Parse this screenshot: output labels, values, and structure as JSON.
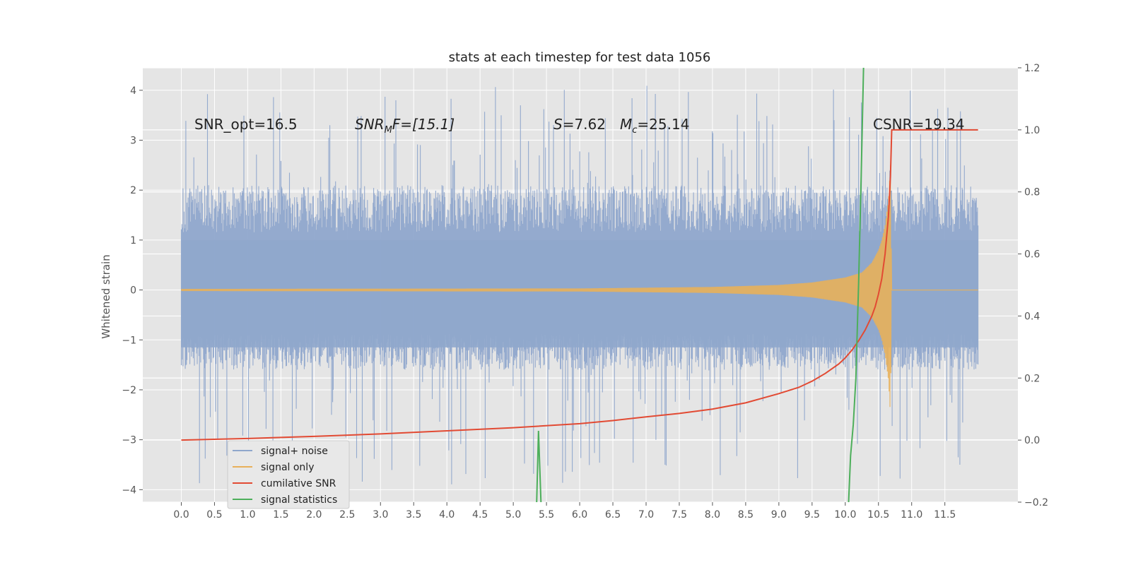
{
  "chart_data": {
    "type": "line",
    "title": "stats at each timestep for test data 1056",
    "ylabel": "Whitened strain",
    "xlim": [
      -0.58,
      12.6
    ],
    "ylim_left": [
      -4.25,
      4.45
    ],
    "ylim_right": [
      -0.2,
      1.2
    ],
    "x_ticks": [
      0.0,
      0.5,
      1.0,
      1.5,
      2.0,
      2.5,
      3.0,
      3.5,
      4.0,
      4.5,
      5.0,
      5.5,
      6.0,
      6.5,
      7.0,
      7.5,
      8.0,
      8.5,
      9.0,
      9.5,
      10.0,
      10.5,
      11.0,
      11.5
    ],
    "x_tick_labels": [
      "0.0",
      "0.5",
      "1.0",
      "1.5",
      "2.0",
      "2.5",
      "3.0",
      "3.5",
      "4.0",
      "4.5",
      "5.0",
      "5.5",
      "6.0",
      "6.5",
      "7.0",
      "7.5",
      "8.0",
      "8.5",
      "9.0",
      "9.5",
      "10.0",
      "10.5",
      "11.0",
      "11.5"
    ],
    "y_left_ticks": [
      -4,
      -3,
      -2,
      -1,
      0,
      1,
      2,
      3,
      4
    ],
    "y_left_tick_labels": [
      "−4",
      "−3",
      "−2",
      "−1",
      "0",
      "1",
      "2",
      "3",
      "4"
    ],
    "y_right_ticks": [
      -0.2,
      0.0,
      0.2,
      0.4,
      0.6,
      0.8,
      1.0,
      1.2
    ],
    "y_right_tick_labels": [
      "−0.2",
      "0.0",
      "0.2",
      "0.4",
      "0.6",
      "0.8",
      "1.0",
      "1.2"
    ],
    "grid": true,
    "legend_position": "lower-left",
    "noise_x_range": [
      0.0,
      12.0
    ],
    "noise_band": [
      -1.6,
      2.1
    ],
    "noise_peak_range": [
      -3.9,
      4.1
    ],
    "series": [
      {
        "name": "signal+ noise",
        "axis": "left",
        "color": "#8fa7cc",
        "description": "whitened noisy strain",
        "x_range": [
          0.0,
          12.0
        ],
        "approx_min": -3.9,
        "approx_max": 4.1
      },
      {
        "name": "signal only",
        "axis": "left",
        "color": "#e8b05a",
        "x": [
          0.0,
          6.0,
          8.0,
          9.0,
          9.5,
          10.0,
          10.25,
          10.4,
          10.5,
          10.55,
          10.6,
          10.65,
          10.68,
          10.7,
          12.0
        ],
        "envelope": [
          0.02,
          0.03,
          0.06,
          0.1,
          0.15,
          0.25,
          0.35,
          0.55,
          0.8,
          1.0,
          1.3,
          1.8,
          2.5,
          0.0,
          0.0
        ]
      },
      {
        "name": "cumilative SNR",
        "axis": "right",
        "color": "#e24a33",
        "x": [
          0.0,
          1.0,
          2.0,
          3.0,
          4.0,
          5.0,
          6.0,
          6.5,
          7.0,
          7.5,
          8.0,
          8.5,
          9.0,
          9.3,
          9.5,
          9.7,
          9.9,
          10.0,
          10.1,
          10.2,
          10.3,
          10.4,
          10.45,
          10.5,
          10.55,
          10.6,
          10.65,
          10.68,
          10.7,
          12.0
        ],
        "y": [
          0.0,
          0.005,
          0.012,
          0.02,
          0.03,
          0.04,
          0.053,
          0.063,
          0.075,
          0.086,
          0.1,
          0.12,
          0.15,
          0.17,
          0.19,
          0.215,
          0.245,
          0.265,
          0.29,
          0.32,
          0.355,
          0.4,
          0.43,
          0.47,
          0.52,
          0.6,
          0.72,
          0.85,
          1.0,
          1.0
        ]
      },
      {
        "name": "signal statistics",
        "axis": "right",
        "color": "#4daf5b",
        "segments": [
          {
            "x": [
              5.35,
              5.38,
              5.42
            ],
            "y": [
              -0.22,
              0.03,
              -0.22
            ]
          },
          {
            "x": [
              10.05,
              10.08,
              10.12,
              10.16,
              10.2,
              10.24,
              10.28
            ],
            "y": [
              -0.2,
              -0.05,
              0.05,
              0.2,
              0.5,
              0.85,
              1.25
            ]
          }
        ]
      }
    ],
    "annotations": [
      {
        "id": "snr-opt",
        "text": "SNR_opt=16.5"
      },
      {
        "id": "snr-mf",
        "text": "SNR_MF=[15.1]",
        "base": "SNR",
        "sub": "M",
        "tail": "F=[15.1]"
      },
      {
        "id": "s-value",
        "text": "S=7.62",
        "var": "S",
        "tail": "=7.62"
      },
      {
        "id": "mc-value",
        "text": "M_c=25.14",
        "var": "M",
        "sub": "c",
        "tail": "=25.14"
      },
      {
        "id": "csnr",
        "text": "CSNR=19.34"
      }
    ]
  }
}
